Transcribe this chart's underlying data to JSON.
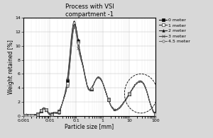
{
  "title_line1": "Process with VSI",
  "title_line2": "compartment -1",
  "xlabel": "Particle size [mm]",
  "ylabel": "Weight retained [%]",
  "xlim": [
    0.001,
    100
  ],
  "ylim": [
    0,
    14
  ],
  "yticks": [
    0,
    2,
    4,
    6,
    8,
    10,
    12,
    14
  ],
  "background_color": "#d8d8d8",
  "plot_bg_color": "#ffffff",
  "legend_labels": [
    "0 meter",
    "1 meter",
    "2 meter",
    "3 meter",
    "4.5 meter"
  ],
  "legend_markers": [
    "s",
    "s",
    "^",
    "x",
    "o"
  ],
  "legend_markerfacecolors": [
    "black",
    "white",
    "black",
    "black",
    "lightgray"
  ],
  "line_colors": [
    "#111111",
    "#333333",
    "#222222",
    "#444444",
    "#666666"
  ],
  "title_fontsize": 6,
  "axis_fontsize": 5.5,
  "tick_fontsize": 4.5,
  "legend_fontsize": 4.5
}
